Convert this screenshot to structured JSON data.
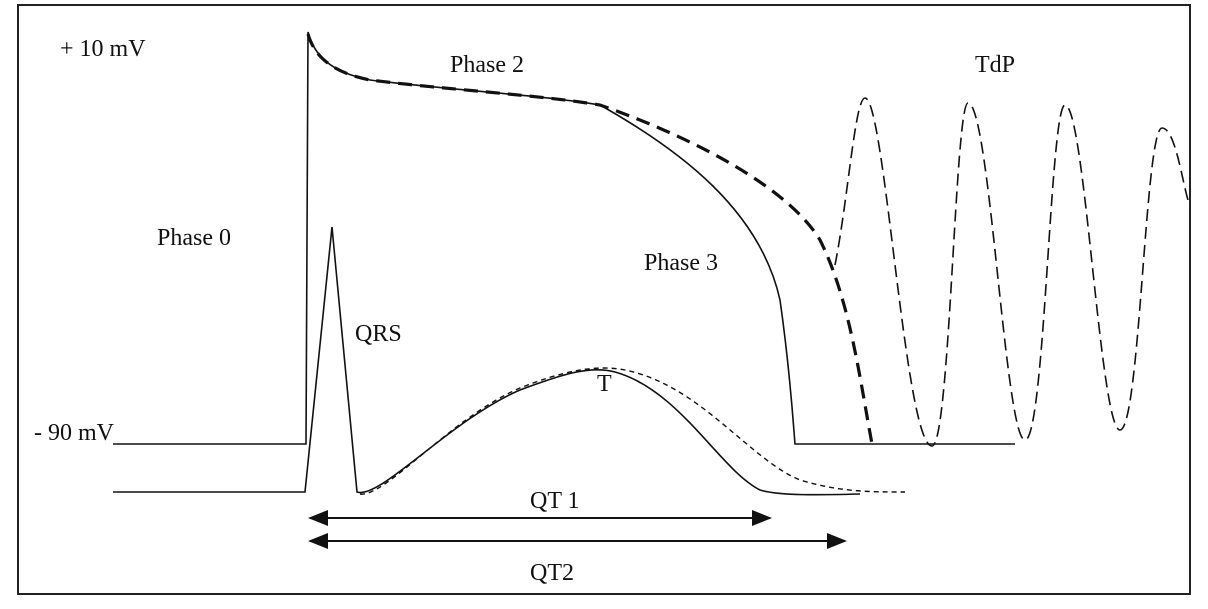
{
  "labels": {
    "top_voltage": "+ 10 mV",
    "bottom_voltage": "- 90 mV",
    "phase_0": "Phase 0",
    "phase_2": "Phase 2",
    "phase_3": "Phase 3",
    "tdp": "TdP",
    "qrs": "QRS",
    "t_wave": "T",
    "qt1": "QT 1",
    "qt2": "QT2"
  }
}
